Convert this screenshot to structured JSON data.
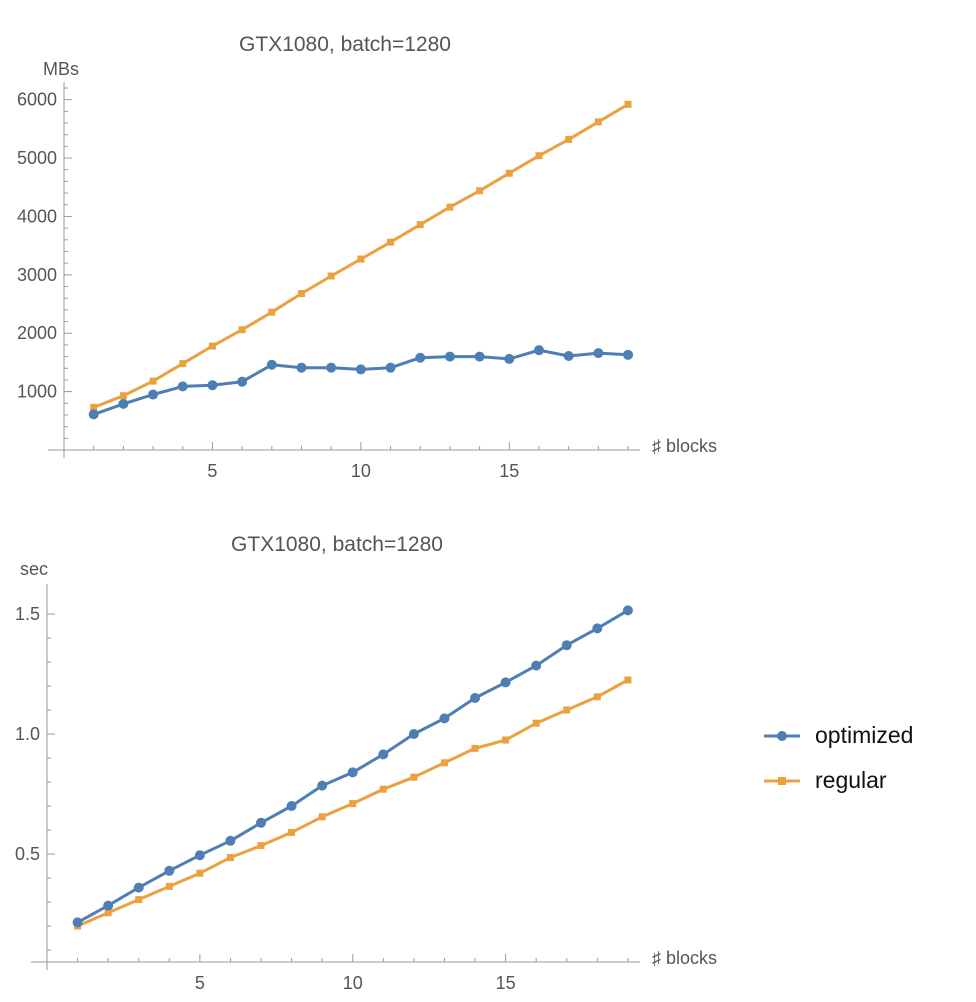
{
  "chart_data": [
    {
      "type": "line",
      "title": "GTX1080, batch=1280",
      "xlabel": "♯ blocks",
      "ylabel": "MBs",
      "xlim": [
        0,
        19.2
      ],
      "ylim": [
        0,
        6200
      ],
      "xticks": [
        5,
        10,
        15
      ],
      "yticks": [
        1000,
        2000,
        3000,
        4000,
        5000,
        6000
      ],
      "grid": false,
      "x": [
        1,
        2,
        3,
        4,
        5,
        6,
        7,
        8,
        9,
        10,
        11,
        12,
        13,
        14,
        15,
        16,
        17,
        18,
        19
      ],
      "series": [
        {
          "name": "optimized",
          "marker": "circle",
          "color": "#4e7fb4",
          "values": [
            610,
            790,
            950,
            1090,
            1110,
            1170,
            1460,
            1410,
            1410,
            1380,
            1410,
            1580,
            1600,
            1600,
            1560,
            1710,
            1610,
            1660,
            1630
          ]
        },
        {
          "name": "regular",
          "marker": "square",
          "color": "#eca140",
          "values": [
            730,
            930,
            1180,
            1480,
            1780,
            2060,
            2360,
            2680,
            2980,
            3270,
            3560,
            3860,
            4160,
            4440,
            4740,
            5040,
            5320,
            5620,
            5920
          ]
        }
      ]
    },
    {
      "type": "line",
      "title": "GTX1080, batch=1280",
      "xlabel": "♯ blocks",
      "ylabel": "sec",
      "xlim": [
        0,
        19.2
      ],
      "ylim": [
        0.05,
        1.6
      ],
      "xticks": [
        5,
        10,
        15
      ],
      "yticks": [
        0.5,
        1.0,
        1.5
      ],
      "ytick_labels": [
        "0.5",
        "1.0",
        "1.5"
      ],
      "grid": false,
      "legend_position": "right",
      "x": [
        1,
        2,
        3,
        4,
        5,
        6,
        7,
        8,
        9,
        10,
        11,
        12,
        13,
        14,
        15,
        16,
        17,
        18,
        19
      ],
      "series": [
        {
          "name": "optimized",
          "marker": "circle",
          "color": "#4e7fb4",
          "values": [
            0.215,
            0.285,
            0.36,
            0.43,
            0.495,
            0.555,
            0.63,
            0.7,
            0.785,
            0.84,
            0.915,
            1.0,
            1.065,
            1.15,
            1.215,
            1.285,
            1.37,
            1.44,
            1.515
          ]
        },
        {
          "name": "regular",
          "marker": "square",
          "color": "#eca140",
          "values": [
            0.2,
            0.255,
            0.31,
            0.365,
            0.42,
            0.485,
            0.535,
            0.59,
            0.655,
            0.71,
            0.77,
            0.82,
            0.88,
            0.94,
            0.975,
            1.045,
            1.1,
            1.155,
            1.225
          ]
        }
      ]
    }
  ],
  "legend": {
    "items": [
      {
        "label": "optimized",
        "color": "#4e7fb4",
        "marker": "circle"
      },
      {
        "label": "regular",
        "color": "#eca140",
        "marker": "square"
      }
    ]
  }
}
